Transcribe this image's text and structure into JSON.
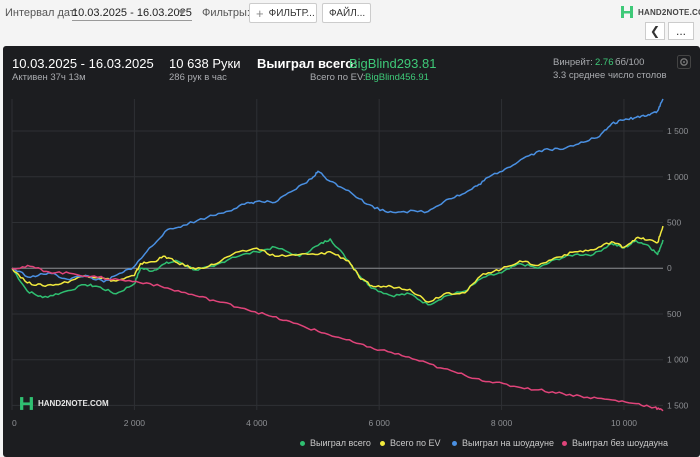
{
  "toolbar": {
    "interval_label": "Интервал дат:",
    "interval_value": "10.03.2025 - 16.03.2025",
    "filters_label": "Фильтры:",
    "filter_button": "ФИЛЬТР...",
    "files_button": "ФАЙЛ...",
    "logo_text": "HAND2NOTE.COM",
    "back_icon": "chevron-left-icon",
    "more_label": "..."
  },
  "summary": {
    "date_range": "10.03.2025 - 16.03.2025",
    "active": "Активен 37ч 13м",
    "hands": "10 638 Руки",
    "hands_per_hour": "286 рук в час",
    "won_total_label": "Выиграл всего:",
    "won_total_value": "BigBlind293.81",
    "ev_label": "Всего по EV:",
    "ev_value": "BigBlind456.91",
    "winrate_label": "Винрейт:",
    "winrate_value": "2.76",
    "winrate_unit": "бб/100",
    "tables": "3.3 среднее число столов"
  },
  "watermark": "HAND2NOTE.COM",
  "colors": {
    "won": "#2fbf71",
    "ev": "#f2ea3d",
    "showdown": "#4a90e2",
    "non_showdown": "#e0447a",
    "accent": "#3ec978"
  },
  "chart_data": {
    "type": "line",
    "xlim": [
      0,
      10638
    ],
    "ylim": [
      -1550,
      1850
    ],
    "y_axis_position": "right",
    "y_labels_absolute": true,
    "x_ticks": [
      0,
      2000,
      4000,
      6000,
      8000,
      10000
    ],
    "x_tick_labels": [
      "0",
      "2 000",
      "4 000",
      "6 000",
      "8 000",
      "10 000"
    ],
    "y_ticks": [
      1500,
      1000,
      500,
      0,
      -500,
      -1000,
      -1500
    ],
    "y_tick_labels": [
      "1 500",
      "1 000",
      "500",
      "0",
      "500",
      "1 000",
      "1 500"
    ],
    "grid": true,
    "legend_position": "bottom-right",
    "series": [
      {
        "name": "Выиграл всего",
        "color": "#2fbf71",
        "x": [
          0,
          250,
          500,
          800,
          1200,
          1400,
          1700,
          2000,
          2100,
          2300,
          2500,
          2700,
          3000,
          3300,
          3600,
          4000,
          4300,
          4700,
          5000,
          5200,
          5500,
          5700,
          5900,
          6200,
          6500,
          6800,
          7100,
          7400,
          7700,
          8000,
          8300,
          8600,
          8900,
          9200,
          9500,
          9800,
          10000,
          10200,
          10400,
          10550,
          10638
        ],
        "y": [
          0,
          -250,
          -320,
          -270,
          -180,
          -200,
          -280,
          -170,
          0,
          -30,
          50,
          80,
          -20,
          20,
          120,
          180,
          230,
          130,
          250,
          320,
          80,
          -100,
          -220,
          -300,
          -280,
          -400,
          -300,
          -250,
          -100,
          -50,
          50,
          0,
          100,
          150,
          150,
          270,
          220,
          300,
          250,
          150,
          310
        ]
      },
      {
        "name": "Всего по EV",
        "color": "#f2ea3d",
        "x": [
          0,
          250,
          500,
          800,
          1200,
          1400,
          1700,
          2000,
          2100,
          2300,
          2500,
          2700,
          3000,
          3300,
          3600,
          4000,
          4300,
          4700,
          5000,
          5200,
          5500,
          5700,
          5900,
          6200,
          6500,
          6800,
          7100,
          7400,
          7700,
          8000,
          8300,
          8600,
          8900,
          9200,
          9500,
          9800,
          10000,
          10200,
          10400,
          10550,
          10638
        ],
        "y": [
          0,
          -160,
          -190,
          -170,
          -80,
          -100,
          -140,
          -80,
          50,
          70,
          130,
          60,
          -10,
          40,
          150,
          220,
          130,
          150,
          150,
          180,
          80,
          -120,
          -200,
          -200,
          -230,
          -370,
          -270,
          -270,
          -60,
          -10,
          80,
          30,
          120,
          180,
          200,
          290,
          230,
          330,
          310,
          280,
          460
        ]
      },
      {
        "name": "Выиграл на шоудауне",
        "color": "#4a90e2",
        "x": [
          0,
          300,
          600,
          900,
          1200,
          1500,
          1800,
          2000,
          2200,
          2500,
          2800,
          3200,
          3500,
          3800,
          4000,
          4300,
          4600,
          4900,
          5000,
          5200,
          5500,
          5800,
          6100,
          6400,
          6800,
          7100,
          7400,
          7600,
          7800,
          8100,
          8400,
          8700,
          9000,
          9300,
          9600,
          9800,
          10000,
          10200,
          10400,
          10550,
          10638
        ],
        "y": [
          0,
          -100,
          -50,
          -120,
          -80,
          -150,
          -50,
          20,
          180,
          400,
          470,
          560,
          620,
          700,
          730,
          720,
          850,
          980,
          1060,
          950,
          850,
          700,
          620,
          620,
          620,
          750,
          820,
          900,
          1000,
          1100,
          1220,
          1300,
          1300,
          1380,
          1440,
          1580,
          1620,
          1650,
          1680,
          1720,
          1850
        ]
      },
      {
        "name": "Выиграл без шоудауна",
        "color": "#e0447a",
        "x": [
          0,
          300,
          600,
          1000,
          1400,
          1800,
          2200,
          2600,
          3000,
          3400,
          3800,
          4200,
          4600,
          5000,
          5400,
          5800,
          6200,
          6600,
          7000,
          7400,
          7800,
          8200,
          8600,
          9000,
          9400,
          9800,
          10200,
          10500,
          10638
        ],
        "y": [
          0,
          20,
          -40,
          -60,
          -100,
          -130,
          -160,
          -230,
          -300,
          -370,
          -440,
          -520,
          -600,
          -690,
          -770,
          -860,
          -920,
          -1000,
          -1090,
          -1170,
          -1240,
          -1290,
          -1330,
          -1370,
          -1410,
          -1440,
          -1480,
          -1520,
          -1560
        ]
      }
    ]
  }
}
